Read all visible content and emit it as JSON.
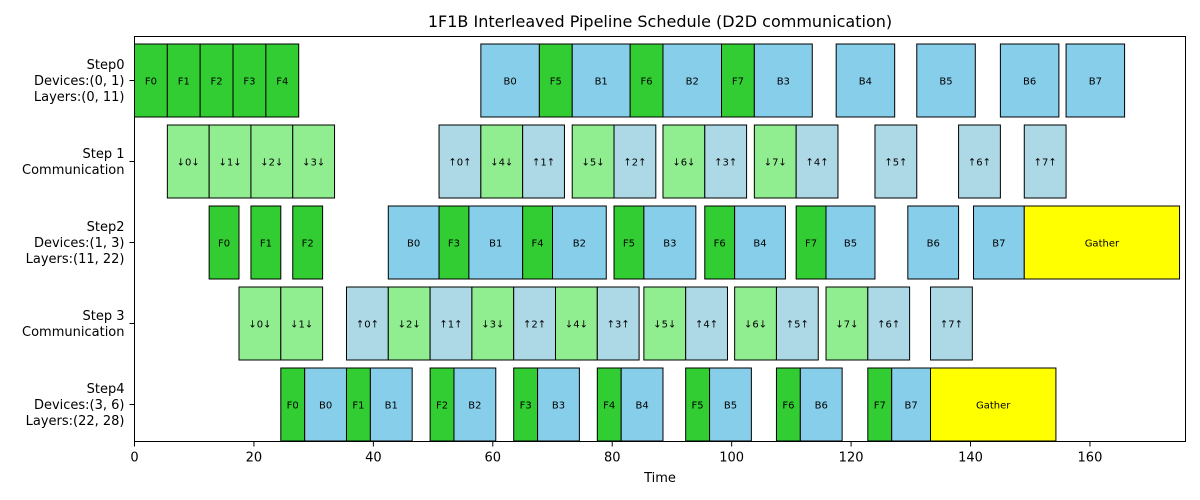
{
  "chart_data": {
    "type": "gantt",
    "title": "1F1B Interleaved Pipeline Schedule (D2D communication)",
    "xlabel": "Time",
    "xlim": [
      0,
      176
    ],
    "xticks": [
      0,
      20,
      40,
      60,
      80,
      100,
      120,
      140,
      160
    ],
    "grid": false,
    "colors": {
      "forward": "#32cd32",
      "backward": "#87ceeb",
      "comm_forward": "#90ee90",
      "comm_backward": "#add8e6",
      "gather": "#ffff00"
    },
    "rows": [
      {
        "lines": [
          "Step0",
          "Devices:(0, 1)",
          "Layers:(0, 11)"
        ],
        "blocks": [
          {
            "label": "F0",
            "kind": "forward",
            "start": 0,
            "end": 5.5
          },
          {
            "label": "F1",
            "kind": "forward",
            "start": 5.5,
            "end": 11
          },
          {
            "label": "F2",
            "kind": "forward",
            "start": 11,
            "end": 16.5
          },
          {
            "label": "F3",
            "kind": "forward",
            "start": 16.5,
            "end": 22
          },
          {
            "label": "F4",
            "kind": "forward",
            "start": 22,
            "end": 27.5
          },
          {
            "label": "B0",
            "kind": "backward",
            "start": 58,
            "end": 67.8
          },
          {
            "label": "F5",
            "kind": "forward",
            "start": 67.8,
            "end": 73.3
          },
          {
            "label": "B1",
            "kind": "backward",
            "start": 73.3,
            "end": 83
          },
          {
            "label": "F6",
            "kind": "forward",
            "start": 83,
            "end": 88.5
          },
          {
            "label": "B2",
            "kind": "backward",
            "start": 88.5,
            "end": 98.3
          },
          {
            "label": "F7",
            "kind": "forward",
            "start": 98.3,
            "end": 103.8
          },
          {
            "label": "B3",
            "kind": "backward",
            "start": 103.8,
            "end": 113.5
          },
          {
            "label": "B4",
            "kind": "backward",
            "start": 117.5,
            "end": 127.3
          },
          {
            "label": "B5",
            "kind": "backward",
            "start": 131,
            "end": 140.8
          },
          {
            "label": "B6",
            "kind": "backward",
            "start": 145,
            "end": 154.8
          },
          {
            "label": "B7",
            "kind": "backward",
            "start": 156,
            "end": 165.8
          }
        ]
      },
      {
        "lines": [
          "Step 1",
          "Communication"
        ],
        "blocks": [
          {
            "label": "↓0↓",
            "kind": "comm_forward",
            "start": 5.5,
            "end": 12.5
          },
          {
            "label": "↓1↓",
            "kind": "comm_forward",
            "start": 12.5,
            "end": 19.5
          },
          {
            "label": "↓2↓",
            "kind": "comm_forward",
            "start": 19.5,
            "end": 26.5
          },
          {
            "label": "↓3↓",
            "kind": "comm_forward",
            "start": 26.5,
            "end": 33.5
          },
          {
            "label": "↑0↑",
            "kind": "comm_backward",
            "start": 51,
            "end": 58
          },
          {
            "label": "↓4↓",
            "kind": "comm_forward",
            "start": 58,
            "end": 65
          },
          {
            "label": "↑1↑",
            "kind": "comm_backward",
            "start": 65,
            "end": 72
          },
          {
            "label": "↓5↓",
            "kind": "comm_forward",
            "start": 73.3,
            "end": 80.3
          },
          {
            "label": "↑2↑",
            "kind": "comm_backward",
            "start": 80.3,
            "end": 87.3
          },
          {
            "label": "↓6↓",
            "kind": "comm_forward",
            "start": 88.5,
            "end": 95.5
          },
          {
            "label": "↑3↑",
            "kind": "comm_backward",
            "start": 95.5,
            "end": 102.5
          },
          {
            "label": "↓7↓",
            "kind": "comm_forward",
            "start": 103.8,
            "end": 110.8
          },
          {
            "label": "↑4↑",
            "kind": "comm_backward",
            "start": 110.8,
            "end": 117.8
          },
          {
            "label": "↑5↑",
            "kind": "comm_backward",
            "start": 124,
            "end": 131
          },
          {
            "label": "↑6↑",
            "kind": "comm_backward",
            "start": 138,
            "end": 145
          },
          {
            "label": "↑7↑",
            "kind": "comm_backward",
            "start": 149,
            "end": 156
          }
        ]
      },
      {
        "lines": [
          "Step2",
          "Devices:(1, 3)",
          "Layers:(11, 22)"
        ],
        "blocks": [
          {
            "label": "F0",
            "kind": "forward",
            "start": 12.5,
            "end": 17.5
          },
          {
            "label": "F1",
            "kind": "forward",
            "start": 19.5,
            "end": 24.5
          },
          {
            "label": "F2",
            "kind": "forward",
            "start": 26.5,
            "end": 31.5
          },
          {
            "label": "B0",
            "kind": "backward",
            "start": 42.5,
            "end": 51
          },
          {
            "label": "F3",
            "kind": "forward",
            "start": 51,
            "end": 56
          },
          {
            "label": "B1",
            "kind": "backward",
            "start": 56,
            "end": 65
          },
          {
            "label": "F4",
            "kind": "forward",
            "start": 65,
            "end": 70
          },
          {
            "label": "B2",
            "kind": "backward",
            "start": 70,
            "end": 79
          },
          {
            "label": "F5",
            "kind": "forward",
            "start": 80.3,
            "end": 85.3
          },
          {
            "label": "B3",
            "kind": "backward",
            "start": 85.3,
            "end": 94
          },
          {
            "label": "F6",
            "kind": "forward",
            "start": 95.5,
            "end": 100.5
          },
          {
            "label": "B4",
            "kind": "backward",
            "start": 100.5,
            "end": 109
          },
          {
            "label": "F7",
            "kind": "forward",
            "start": 110.8,
            "end": 115.8
          },
          {
            "label": "B5",
            "kind": "backward",
            "start": 115.8,
            "end": 124
          },
          {
            "label": "B6",
            "kind": "backward",
            "start": 129.5,
            "end": 138
          },
          {
            "label": "B7",
            "kind": "backward",
            "start": 140.5,
            "end": 149
          },
          {
            "label": "Gather",
            "kind": "gather",
            "start": 149,
            "end": 175
          }
        ]
      },
      {
        "lines": [
          "Step 3",
          "Communication"
        ],
        "blocks": [
          {
            "label": "↓0↓",
            "kind": "comm_forward",
            "start": 17.5,
            "end": 24.5
          },
          {
            "label": "↓1↓",
            "kind": "comm_forward",
            "start": 24.5,
            "end": 31.5
          },
          {
            "label": "↑0↑",
            "kind": "comm_backward",
            "start": 35.5,
            "end": 42.5
          },
          {
            "label": "↓2↓",
            "kind": "comm_forward",
            "start": 42.5,
            "end": 49.5
          },
          {
            "label": "↑1↑",
            "kind": "comm_backward",
            "start": 49.5,
            "end": 56.5
          },
          {
            "label": "↓3↓",
            "kind": "comm_forward",
            "start": 56.5,
            "end": 63.5
          },
          {
            "label": "↑2↑",
            "kind": "comm_backward",
            "start": 63.5,
            "end": 70.5
          },
          {
            "label": "↓4↓",
            "kind": "comm_forward",
            "start": 70.5,
            "end": 77.5
          },
          {
            "label": "↑3↑",
            "kind": "comm_backward",
            "start": 77.5,
            "end": 84.5
          },
          {
            "label": "↓5↓",
            "kind": "comm_forward",
            "start": 85.3,
            "end": 92.3
          },
          {
            "label": "↑4↑",
            "kind": "comm_backward",
            "start": 92.3,
            "end": 99.3
          },
          {
            "label": "↓6↓",
            "kind": "comm_forward",
            "start": 100.5,
            "end": 107.5
          },
          {
            "label": "↑5↑",
            "kind": "comm_backward",
            "start": 107.5,
            "end": 114.5
          },
          {
            "label": "↓7↓",
            "kind": "comm_forward",
            "start": 115.8,
            "end": 122.8
          },
          {
            "label": "↑6↑",
            "kind": "comm_backward",
            "start": 122.8,
            "end": 129.8
          },
          {
            "label": "↑7↑",
            "kind": "comm_backward",
            "start": 133.3,
            "end": 140.3
          }
        ]
      },
      {
        "lines": [
          "Step4",
          "Devices:(3, 6)",
          "Layers:(22, 28)"
        ],
        "blocks": [
          {
            "label": "F0",
            "kind": "forward",
            "start": 24.5,
            "end": 28.5
          },
          {
            "label": "B0",
            "kind": "backward",
            "start": 28.5,
            "end": 35.5
          },
          {
            "label": "F1",
            "kind": "forward",
            "start": 35.5,
            "end": 39.5
          },
          {
            "label": "B1",
            "kind": "backward",
            "start": 39.5,
            "end": 46.5
          },
          {
            "label": "F2",
            "kind": "forward",
            "start": 49.5,
            "end": 53.5
          },
          {
            "label": "B2",
            "kind": "backward",
            "start": 53.5,
            "end": 60.5
          },
          {
            "label": "F3",
            "kind": "forward",
            "start": 63.5,
            "end": 67.5
          },
          {
            "label": "B3",
            "kind": "backward",
            "start": 67.5,
            "end": 74.5
          },
          {
            "label": "F4",
            "kind": "forward",
            "start": 77.5,
            "end": 81.5
          },
          {
            "label": "B4",
            "kind": "backward",
            "start": 81.5,
            "end": 88.5
          },
          {
            "label": "F5",
            "kind": "forward",
            "start": 92.3,
            "end": 96.3
          },
          {
            "label": "B5",
            "kind": "backward",
            "start": 96.3,
            "end": 103.3
          },
          {
            "label": "F6",
            "kind": "forward",
            "start": 107.5,
            "end": 111.5
          },
          {
            "label": "B6",
            "kind": "backward",
            "start": 111.5,
            "end": 118.5
          },
          {
            "label": "F7",
            "kind": "forward",
            "start": 122.8,
            "end": 126.8
          },
          {
            "label": "B7",
            "kind": "backward",
            "start": 126.8,
            "end": 133.3
          },
          {
            "label": "Gather",
            "kind": "gather",
            "start": 133.3,
            "end": 154.3
          }
        ]
      }
    ]
  }
}
